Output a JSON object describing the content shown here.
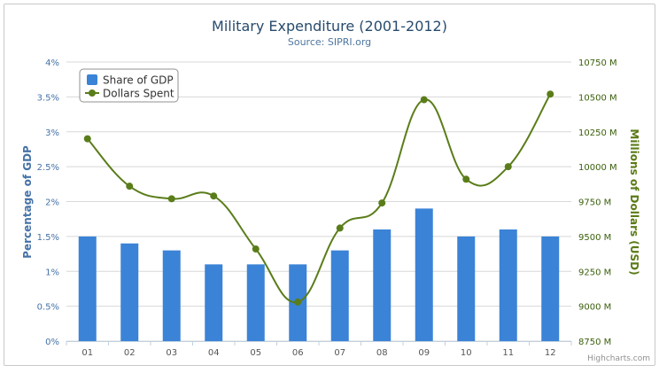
{
  "colors": {
    "bar": "#3b83d6",
    "line": "#5a7d1a",
    "grid": "#d8d8d8",
    "left_axis_text": "#4572a7",
    "right_axis_text": "#3a5f0b"
  },
  "legend": {
    "bar_label": "Share of GDP",
    "line_label": "Dollars Spent"
  },
  "credits": "Highcharts.com",
  "chart_data": {
    "type": "bar",
    "title": "Military Expenditure (2001-2012)",
    "subtitle": "Source: SIPRI.org",
    "categories": [
      "01",
      "02",
      "03",
      "04",
      "05",
      "06",
      "07",
      "08",
      "09",
      "10",
      "11",
      "12"
    ],
    "xlabel": "",
    "y_left": {
      "label": "Percentage of GDP",
      "ticks": [
        "0%",
        "0.5%",
        "1%",
        "1.5%",
        "2%",
        "2.5%",
        "3%",
        "3.5%",
        "4%"
      ],
      "ylim": [
        0,
        4
      ]
    },
    "y_right": {
      "label": "Millions of Dollars (USD)",
      "ticks": [
        "8750 M",
        "9000 M",
        "9250 M",
        "9500 M",
        "9750 M",
        "10000 M",
        "10250 M",
        "10500 M",
        "10750 M"
      ],
      "ylim": [
        8750,
        10750
      ]
    },
    "grid": true,
    "legend_position": "top-left",
    "series": [
      {
        "name": "Share of GDP",
        "type": "bar",
        "axis": "left",
        "values": [
          1.5,
          1.4,
          1.3,
          1.1,
          1.1,
          1.1,
          1.3,
          1.6,
          1.9,
          1.5,
          1.6,
          1.5
        ]
      },
      {
        "name": "Dollars Spent",
        "type": "line",
        "smooth": true,
        "axis": "right",
        "values": [
          10200,
          9860,
          9770,
          9790,
          9410,
          9030,
          9560,
          9740,
          10480,
          9910,
          10000,
          10520
        ]
      }
    ]
  }
}
